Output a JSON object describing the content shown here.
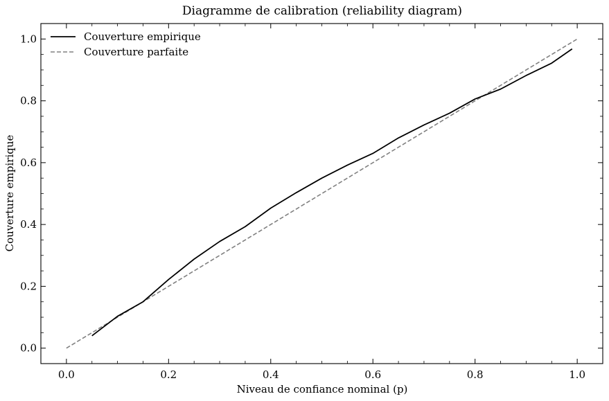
{
  "chart_data": {
    "type": "line",
    "title": "Diagramme de calibration (reliability diagram)",
    "xlabel": "Niveau de confiance nominal (p)",
    "ylabel": "Couverture empirique",
    "xlim": [
      -0.05,
      1.05
    ],
    "ylim": [
      -0.05,
      1.05
    ],
    "xticks": [
      0.0,
      0.2,
      0.4,
      0.6,
      0.8,
      1.0
    ],
    "yticks": [
      0.0,
      0.2,
      0.4,
      0.6,
      0.8,
      1.0
    ],
    "xtick_labels": [
      "0.0",
      "0.2",
      "0.4",
      "0.6",
      "0.8",
      "1.0"
    ],
    "ytick_labels": [
      "0.0",
      "0.2",
      "0.4",
      "0.6",
      "0.8",
      "1.0"
    ],
    "legend_position": "top-left",
    "grid": false,
    "series": [
      {
        "name": "Couverture empirique",
        "color": "#000000",
        "style": "solid",
        "x": [
          0.05,
          0.1,
          0.15,
          0.2,
          0.25,
          0.3,
          0.35,
          0.4,
          0.45,
          0.5,
          0.55,
          0.6,
          0.65,
          0.7,
          0.75,
          0.8,
          0.85,
          0.9,
          0.95,
          0.99
        ],
        "y": [
          0.04,
          0.103,
          0.15,
          0.222,
          0.288,
          0.345,
          0.393,
          0.453,
          0.503,
          0.55,
          0.592,
          0.63,
          0.68,
          0.722,
          0.76,
          0.806,
          0.838,
          0.882,
          0.922,
          0.968
        ]
      },
      {
        "name": "Couverture parfaite",
        "color": "#808080",
        "style": "dashed",
        "x": [
          0.0,
          1.0
        ],
        "y": [
          0.0,
          1.0
        ]
      }
    ]
  }
}
